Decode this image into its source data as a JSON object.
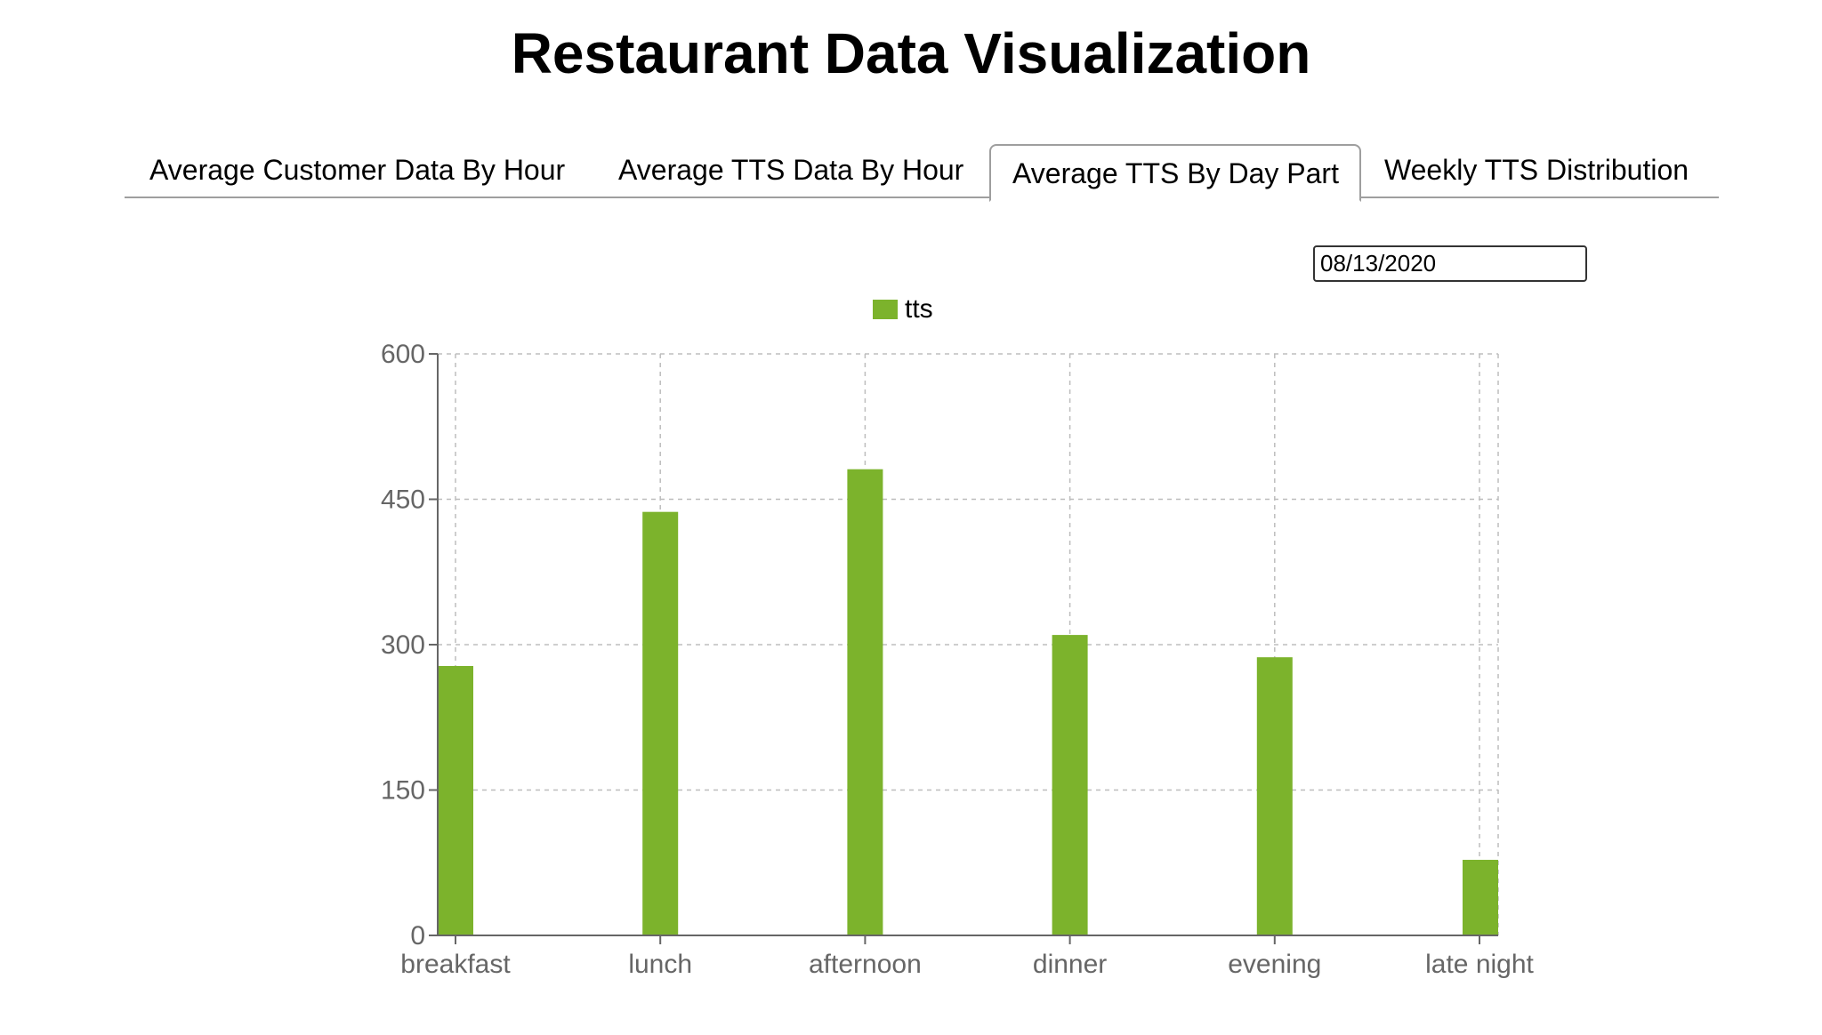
{
  "page": {
    "title": "Restaurant Data Visualization"
  },
  "tabs": [
    {
      "label": "Average Customer Data By Hour",
      "active": false
    },
    {
      "label": "Average TTS Data By Hour",
      "active": false
    },
    {
      "label": "Average TTS By Day Part",
      "active": true
    },
    {
      "label": "Weekly TTS Distribution",
      "active": false
    }
  ],
  "date_input": {
    "value": "08/13/2020"
  },
  "colors": {
    "bar": "#7cb32c",
    "grid": "#bdbdbd",
    "axis": "#666666"
  },
  "chart_data": {
    "type": "bar",
    "categories": [
      "breakfast",
      "lunch",
      "afternoon",
      "dinner",
      "evening",
      "late night"
    ],
    "series": [
      {
        "name": "tts",
        "values": [
          278,
          437,
          481,
          310,
          287,
          78
        ]
      }
    ],
    "yticks": [
      0,
      150,
      300,
      450,
      600
    ],
    "ylim": [
      0,
      600
    ],
    "grid": true,
    "legend": "top-center"
  }
}
